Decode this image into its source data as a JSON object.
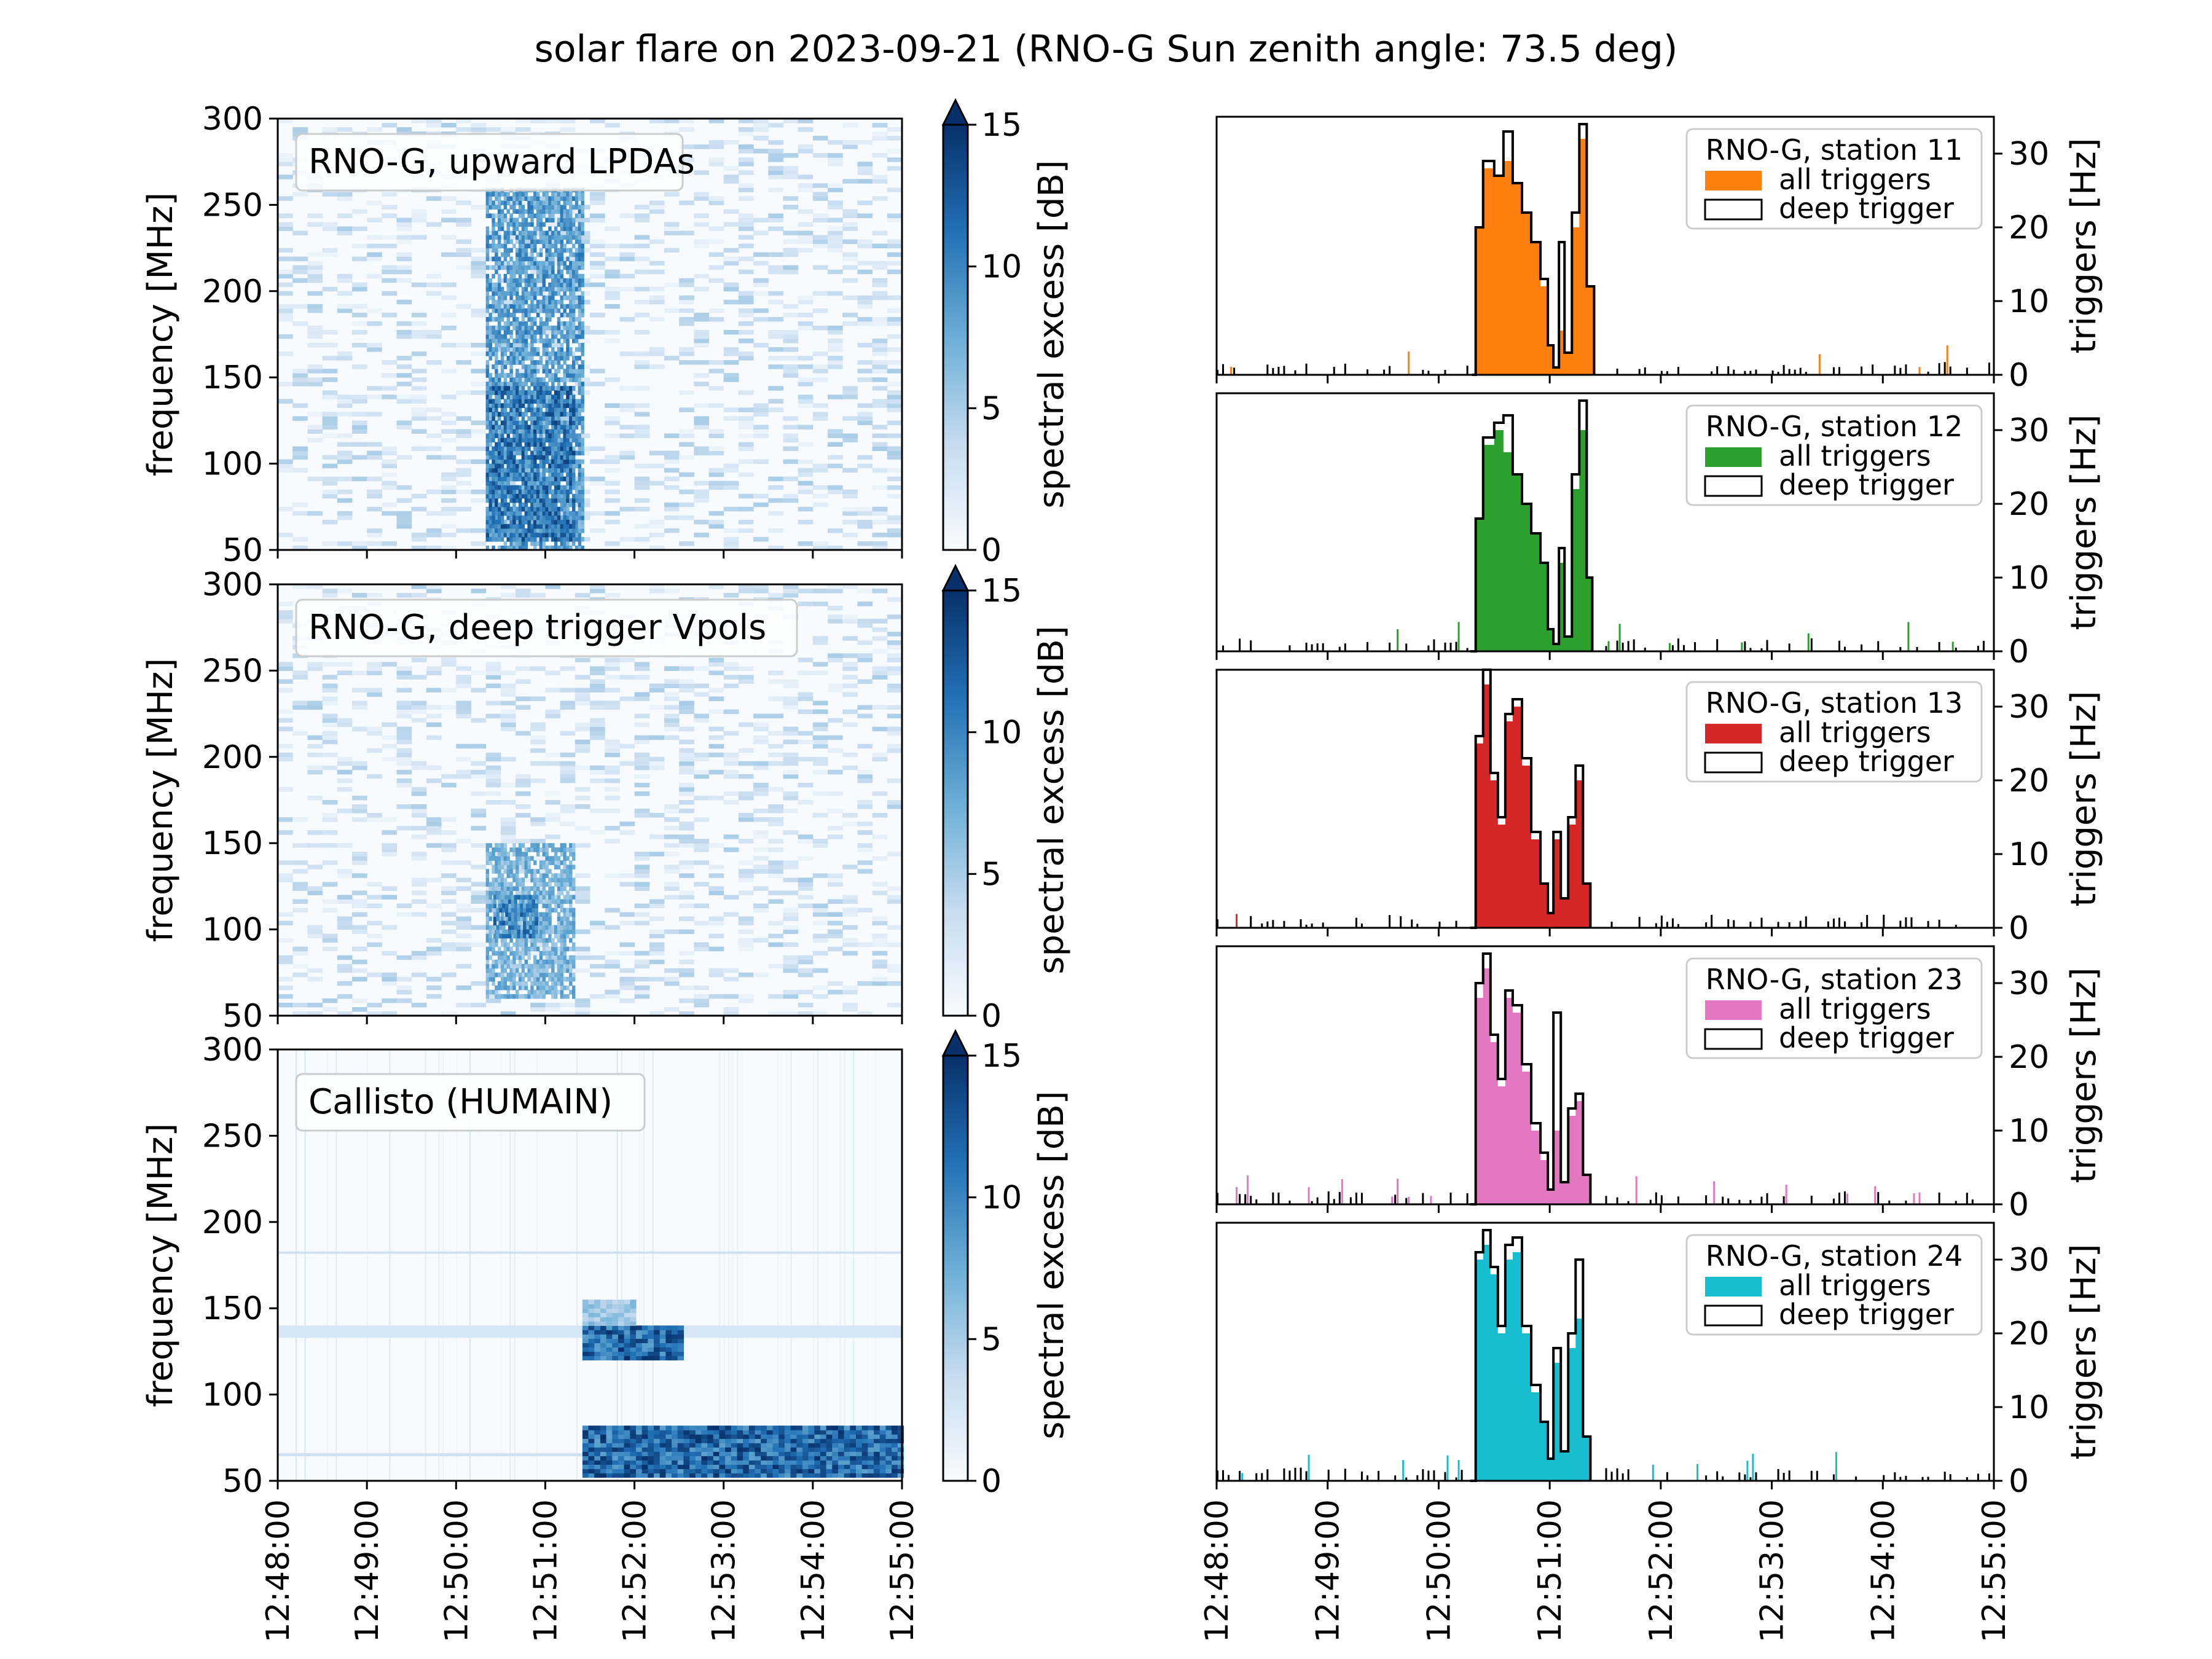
{
  "title": "solar flare on 2023-09-21 (RNO-G Sun zenith angle: 73.5 deg)",
  "colors": {
    "station_11": "#ff7f0e",
    "station_12": "#2ca02c",
    "station_13": "#d62728",
    "station_23": "#e377c2",
    "station_24": "#17becf",
    "colormap_low": "#f7fbff",
    "colormap_high": "#08306b"
  },
  "chart_data": [
    {
      "type": "heatmap",
      "panel_label": "RNO-G, upward LPDAs",
      "ylabel": "frequency [MHz]",
      "ylim": [
        50,
        300
      ],
      "yticks": [
        "50",
        "100",
        "150",
        "200",
        "250",
        "300"
      ],
      "colorbar_label": "spectral excess [dB]",
      "colorbar_ticks": [
        "0",
        "5",
        "10",
        "15"
      ],
      "clim": [
        0,
        15
      ],
      "features": [
        {
          "t_start": "12:50:20",
          "t_end": "12:51:25",
          "f_low": 50,
          "f_high": 260,
          "level": 11
        },
        {
          "t_start": "12:50:20",
          "t_end": "12:51:20",
          "f_low": 55,
          "f_high": 145,
          "level": 14
        }
      ]
    },
    {
      "type": "heatmap",
      "panel_label": "RNO-G, deep trigger Vpols",
      "ylabel": "frequency [MHz]",
      "ylim": [
        50,
        300
      ],
      "yticks": [
        "50",
        "100",
        "150",
        "200",
        "250",
        "300"
      ],
      "colorbar_label": "spectral excess [dB]",
      "colorbar_ticks": [
        "0",
        "5",
        "10",
        "15"
      ],
      "clim": [
        0,
        15
      ],
      "features": [
        {
          "t_start": "12:50:20",
          "t_end": "12:51:20",
          "f_low": 60,
          "f_high": 150,
          "level": 9
        },
        {
          "t_start": "12:50:25",
          "t_end": "12:50:55",
          "f_low": 95,
          "f_high": 120,
          "level": 13
        }
      ]
    },
    {
      "type": "heatmap",
      "panel_label": "Callisto (HUMAIN)",
      "ylabel": "frequency [MHz]",
      "ylim": [
        50,
        300
      ],
      "yticks": [
        "50",
        "100",
        "150",
        "200",
        "250",
        "300"
      ],
      "colorbar_label": "spectral excess [dB]",
      "colorbar_ticks": [
        "0",
        "5",
        "10",
        "15"
      ],
      "clim": [
        0,
        15
      ],
      "xticks": [
        "12:48:00",
        "12:49:00",
        "12:50:00",
        "12:51:00",
        "12:52:00",
        "12:53:00",
        "12:54:00",
        "12:55:00"
      ],
      "features": [
        {
          "t_start": "12:51:25",
          "t_end": "12:52:30",
          "f_low": 120,
          "f_high": 140,
          "level": 15
        },
        {
          "t_start": "12:51:25",
          "t_end": "12:55:00",
          "f_low": 52,
          "f_high": 80,
          "level": 15
        },
        {
          "t_start": "12:51:25",
          "t_end": "12:52:00",
          "f_low": 140,
          "f_high": 155,
          "level": 7
        }
      ]
    },
    {
      "type": "bar",
      "ylabel": "triggers [Hz]",
      "ylim": [
        0,
        35
      ],
      "yticks": [
        "0",
        "10",
        "20",
        "30"
      ],
      "xticks": [
        "12:48:00",
        "12:49:00",
        "12:50:00",
        "12:51:00",
        "12:52:00",
        "12:53:00",
        "12:54:00",
        "12:55:00"
      ],
      "legend": {
        "title": "RNO-G, station 11",
        "placement": "upper right"
      },
      "series": [
        {
          "name": "all triggers",
          "points": [
            [
              "12:50:18",
              0
            ],
            [
              "12:50:20",
              20
            ],
            [
              "12:50:24",
              28
            ],
            [
              "12:50:30",
              27
            ],
            [
              "12:50:35",
              29
            ],
            [
              "12:50:40",
              26
            ],
            [
              "12:50:45",
              22
            ],
            [
              "12:50:50",
              18
            ],
            [
              "12:50:55",
              12
            ],
            [
              "12:50:59",
              4
            ],
            [
              "12:51:02",
              1
            ],
            [
              "12:51:05",
              6
            ],
            [
              "12:51:08",
              3
            ],
            [
              "12:51:12",
              20
            ],
            [
              "12:51:16",
              32
            ],
            [
              "12:51:20",
              12
            ],
            [
              "12:51:24",
              0
            ]
          ]
        },
        {
          "name": "deep trigger",
          "points": [
            [
              "12:50:18",
              0
            ],
            [
              "12:50:20",
              20
            ],
            [
              "12:50:24",
              29
            ],
            [
              "12:50:30",
              27
            ],
            [
              "12:50:35",
              33
            ],
            [
              "12:50:40",
              26
            ],
            [
              "12:50:45",
              22
            ],
            [
              "12:50:50",
              18
            ],
            [
              "12:50:55",
              13
            ],
            [
              "12:50:59",
              4
            ],
            [
              "12:51:02",
              1
            ],
            [
              "12:51:05",
              18
            ],
            [
              "12:51:08",
              3
            ],
            [
              "12:51:12",
              22
            ],
            [
              "12:51:16",
              34
            ],
            [
              "12:51:20",
              12
            ],
            [
              "12:51:24",
              0
            ]
          ]
        }
      ]
    },
    {
      "type": "bar",
      "ylabel": "triggers [Hz]",
      "ylim": [
        0,
        35
      ],
      "yticks": [
        "0",
        "10",
        "20",
        "30"
      ],
      "xticks": [
        "12:48:00",
        "12:49:00",
        "12:50:00",
        "12:51:00",
        "12:52:00",
        "12:53:00",
        "12:54:00",
        "12:55:00"
      ],
      "legend": {
        "title": "RNO-G, station 12",
        "placement": "upper right"
      },
      "series": [
        {
          "name": "all triggers",
          "points": [
            [
              "12:50:17",
              0
            ],
            [
              "12:50:20",
              18
            ],
            [
              "12:50:24",
              28
            ],
            [
              "12:50:30",
              30
            ],
            [
              "12:50:35",
              27
            ],
            [
              "12:50:40",
              24
            ],
            [
              "12:50:45",
              20
            ],
            [
              "12:50:50",
              16
            ],
            [
              "12:50:55",
              12
            ],
            [
              "12:50:59",
              3
            ],
            [
              "12:51:02",
              1
            ],
            [
              "12:51:05",
              12
            ],
            [
              "12:51:08",
              2
            ],
            [
              "12:51:12",
              22
            ],
            [
              "12:51:16",
              30
            ],
            [
              "12:51:20",
              10
            ],
            [
              "12:51:23",
              0
            ]
          ]
        },
        {
          "name": "deep trigger",
          "points": [
            [
              "12:50:17",
              0
            ],
            [
              "12:50:20",
              18
            ],
            [
              "12:50:24",
              29
            ],
            [
              "12:50:30",
              31
            ],
            [
              "12:50:35",
              32
            ],
            [
              "12:50:40",
              24
            ],
            [
              "12:50:45",
              20
            ],
            [
              "12:50:50",
              16
            ],
            [
              "12:50:55",
              12
            ],
            [
              "12:50:59",
              3
            ],
            [
              "12:51:02",
              1
            ],
            [
              "12:51:05",
              14
            ],
            [
              "12:51:08",
              2
            ],
            [
              "12:51:12",
              24
            ],
            [
              "12:51:16",
              34
            ],
            [
              "12:51:20",
              10
            ],
            [
              "12:51:23",
              0
            ]
          ]
        }
      ]
    },
    {
      "type": "bar",
      "ylabel": "triggers [Hz]",
      "ylim": [
        0,
        35
      ],
      "yticks": [
        "0",
        "10",
        "20",
        "30"
      ],
      "xticks": [
        "12:48:00",
        "12:49:00",
        "12:50:00",
        "12:51:00",
        "12:52:00",
        "12:53:00",
        "12:54:00",
        "12:55:00"
      ],
      "legend": {
        "title": "RNO-G, station 13",
        "placement": "upper right"
      },
      "series": [
        {
          "name": "all triggers",
          "points": [
            [
              "12:50:17",
              0
            ],
            [
              "12:50:20",
              25
            ],
            [
              "12:50:24",
              33
            ],
            [
              "12:50:28",
              20
            ],
            [
              "12:50:32",
              14
            ],
            [
              "12:50:36",
              28
            ],
            [
              "12:50:40",
              30
            ],
            [
              "12:50:45",
              22
            ],
            [
              "12:50:50",
              12
            ],
            [
              "12:50:55",
              6
            ],
            [
              "12:50:59",
              2
            ],
            [
              "12:51:02",
              12
            ],
            [
              "12:51:06",
              4
            ],
            [
              "12:51:10",
              14
            ],
            [
              "12:51:14",
              20
            ],
            [
              "12:51:18",
              6
            ],
            [
              "12:51:22",
              0
            ]
          ]
        },
        {
          "name": "deep trigger",
          "points": [
            [
              "12:50:17",
              0
            ],
            [
              "12:50:20",
              26
            ],
            [
              "12:50:24",
              35
            ],
            [
              "12:50:28",
              21
            ],
            [
              "12:50:32",
              15
            ],
            [
              "12:50:36",
              29
            ],
            [
              "12:50:40",
              31
            ],
            [
              "12:50:45",
              23
            ],
            [
              "12:50:50",
              13
            ],
            [
              "12:50:55",
              6
            ],
            [
              "12:50:59",
              2
            ],
            [
              "12:51:02",
              13
            ],
            [
              "12:51:06",
              4
            ],
            [
              "12:51:10",
              15
            ],
            [
              "12:51:14",
              22
            ],
            [
              "12:51:18",
              6
            ],
            [
              "12:51:22",
              0
            ]
          ]
        }
      ]
    },
    {
      "type": "bar",
      "ylabel": "triggers [Hz]",
      "ylim": [
        0,
        35
      ],
      "yticks": [
        "0",
        "10",
        "20",
        "30"
      ],
      "xticks": [
        "12:48:00",
        "12:49:00",
        "12:50:00",
        "12:51:00",
        "12:52:00",
        "12:53:00",
        "12:54:00",
        "12:55:00"
      ],
      "legend": {
        "title": "RNO-G, station 23",
        "placement": "upper right"
      },
      "series": [
        {
          "name": "all triggers",
          "points": [
            [
              "12:50:17",
              0
            ],
            [
              "12:50:20",
              28
            ],
            [
              "12:50:24",
              32
            ],
            [
              "12:50:28",
              22
            ],
            [
              "12:50:32",
              16
            ],
            [
              "12:50:36",
              28
            ],
            [
              "12:50:40",
              26
            ],
            [
              "12:50:45",
              18
            ],
            [
              "12:50:50",
              10
            ],
            [
              "12:50:55",
              6
            ],
            [
              "12:50:59",
              2
            ],
            [
              "12:51:02",
              10
            ],
            [
              "12:51:06",
              3
            ],
            [
              "12:51:10",
              12
            ],
            [
              "12:51:14",
              14
            ],
            [
              "12:51:18",
              4
            ],
            [
              "12:51:22",
              0
            ]
          ]
        },
        {
          "name": "deep trigger",
          "points": [
            [
              "12:50:17",
              0
            ],
            [
              "12:50:20",
              30
            ],
            [
              "12:50:24",
              34
            ],
            [
              "12:50:28",
              23
            ],
            [
              "12:50:32",
              17
            ],
            [
              "12:50:36",
              29
            ],
            [
              "12:50:40",
              27
            ],
            [
              "12:50:45",
              19
            ],
            [
              "12:50:50",
              11
            ],
            [
              "12:50:55",
              7
            ],
            [
              "12:50:59",
              2
            ],
            [
              "12:51:02",
              26
            ],
            [
              "12:51:06",
              3
            ],
            [
              "12:51:10",
              13
            ],
            [
              "12:51:14",
              15
            ],
            [
              "12:51:18",
              4
            ],
            [
              "12:51:22",
              0
            ]
          ]
        }
      ]
    },
    {
      "type": "bar",
      "ylabel": "triggers [Hz]",
      "ylim": [
        0,
        35
      ],
      "yticks": [
        "0",
        "10",
        "20",
        "30"
      ],
      "xticks": [
        "12:48:00",
        "12:49:00",
        "12:50:00",
        "12:51:00",
        "12:52:00",
        "12:53:00",
        "12:54:00",
        "12:55:00"
      ],
      "legend": {
        "title": "RNO-G, station 24",
        "placement": "upper right"
      },
      "series": [
        {
          "name": "all triggers",
          "points": [
            [
              "12:50:17",
              0
            ],
            [
              "12:50:20",
              30
            ],
            [
              "12:50:24",
              32
            ],
            [
              "12:50:28",
              28
            ],
            [
              "12:50:32",
              20
            ],
            [
              "12:50:36",
              30
            ],
            [
              "12:50:40",
              31
            ],
            [
              "12:50:45",
              20
            ],
            [
              "12:50:50",
              12
            ],
            [
              "12:50:55",
              8
            ],
            [
              "12:50:59",
              3
            ],
            [
              "12:51:02",
              16
            ],
            [
              "12:51:06",
              4
            ],
            [
              "12:51:10",
              18
            ],
            [
              "12:51:14",
              22
            ],
            [
              "12:51:18",
              6
            ],
            [
              "12:51:22",
              0
            ]
          ]
        },
        {
          "name": "deep trigger",
          "points": [
            [
              "12:50:17",
              0
            ],
            [
              "12:50:20",
              31
            ],
            [
              "12:50:24",
              34
            ],
            [
              "12:50:28",
              29
            ],
            [
              "12:50:32",
              21
            ],
            [
              "12:50:36",
              32
            ],
            [
              "12:50:40",
              33
            ],
            [
              "12:50:45",
              21
            ],
            [
              "12:50:50",
              13
            ],
            [
              "12:50:55",
              8
            ],
            [
              "12:50:59",
              3
            ],
            [
              "12:51:02",
              18
            ],
            [
              "12:51:06",
              4
            ],
            [
              "12:51:10",
              20
            ],
            [
              "12:51:14",
              30
            ],
            [
              "12:51:18",
              6
            ],
            [
              "12:51:22",
              0
            ]
          ]
        }
      ]
    }
  ]
}
